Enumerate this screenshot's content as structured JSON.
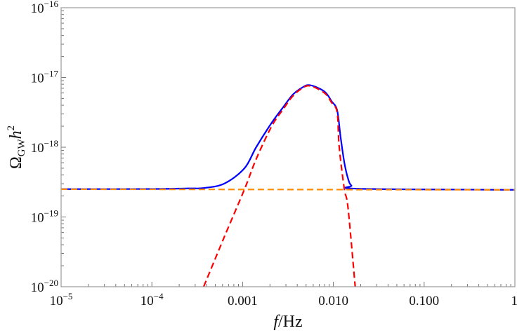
{
  "chart_data": {
    "type": "line",
    "title": "",
    "xlabel": {
      "italic": "f",
      "rest": "/Hz"
    },
    "ylabel": {
      "base": "Ω",
      "sub": "GW",
      "var": "h",
      "sup": "2"
    },
    "xscale": "log",
    "yscale": "log",
    "xlim": [
      1e-05,
      1
    ],
    "ylim": [
      1e-20,
      1e-16
    ],
    "grid": false,
    "legend": "none",
    "x_ticks": [
      {
        "value": 1e-05,
        "base": "10",
        "exp": "−5"
      },
      {
        "value": 0.0001,
        "base": "10",
        "exp": "−4"
      },
      {
        "value": 0.001,
        "base": "0.001",
        "exp": ""
      },
      {
        "value": 0.01,
        "base": "0.010",
        "exp": ""
      },
      {
        "value": 0.1,
        "base": "0.100",
        "exp": ""
      },
      {
        "value": 1,
        "base": "1",
        "exp": ""
      }
    ],
    "y_ticks": [
      {
        "value": 1e-16,
        "base": "10",
        "exp": "−16"
      },
      {
        "value": 1e-17,
        "base": "10",
        "exp": "−17"
      },
      {
        "value": 1e-18,
        "base": "10",
        "exp": "−18"
      },
      {
        "value": 1e-19,
        "base": "10",
        "exp": "−19"
      },
      {
        "value": 1e-20,
        "base": "10",
        "exp": "−20"
      }
    ],
    "series": [
      {
        "style": "solid",
        "color": "#0000ff",
        "x": [
          1e-05,
          0.0001,
          0.000251,
          0.000372,
          0.000631,
          0.00105,
          0.00141,
          0.00209,
          0.00282,
          0.00355,
          0.00447,
          0.0055,
          0.00794,
          0.00955,
          0.011,
          0.012,
          0.0132,
          0.0145,
          0.0158,
          0.0191,
          1
        ],
        "y": [
          2.51e-19,
          2.52e-19,
          2.57e-19,
          2.6e-19,
          3.02e-19,
          5.01e-19,
          1e-18,
          2.24e-18,
          3.8e-18,
          5.62e-18,
          7.08e-18,
          7.76e-18,
          6.31e-18,
          4.57e-18,
          3.39e-18,
          1.41e-18,
          6.03e-19,
          3.55e-19,
          2.82e-19,
          2.54e-19,
          2.45e-19
        ]
      },
      {
        "style": "dashed",
        "color": "#ff0000",
        "x": [
          0.000372,
          0.000631,
          0.00105,
          0.00141,
          0.00209,
          0.00282,
          0.00355,
          0.00447,
          0.0055,
          0.00794,
          0.00955,
          0.011,
          0.0116,
          0.0132,
          0.0145,
          0.0174
        ],
        "y": [
          1e-20,
          5.25e-20,
          2.51e-19,
          6.76e-19,
          2e-18,
          3.55e-18,
          5.37e-18,
          6.92e-18,
          7.59e-18,
          6.03e-18,
          4.37e-18,
          3.16e-18,
          1e-18,
          2.51e-19,
          1.35e-19,
          1e-20
        ]
      },
      {
        "style": "dashed",
        "color": "#ff8c00",
        "x": [
          1e-05,
          1
        ],
        "y": [
          2.5e-19,
          2.45e-19
        ]
      }
    ]
  }
}
